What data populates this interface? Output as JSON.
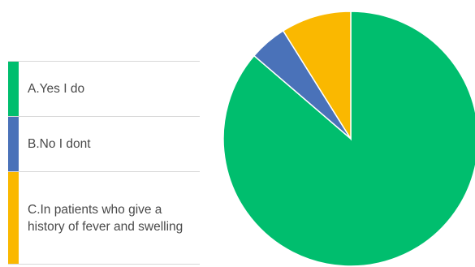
{
  "chart_data": {
    "type": "pie",
    "legend_position": "left",
    "slices": [
      {
        "label": "A.Yes I do",
        "value": 86.3,
        "color": "#00BE6E"
      },
      {
        "label": "B.No I dont",
        "value": 4.8,
        "color": "#4A72B9"
      },
      {
        "label": "C.In patients who give a history of fever and swelling",
        "value": 8.9,
        "color": "#FAB800"
      }
    ]
  }
}
